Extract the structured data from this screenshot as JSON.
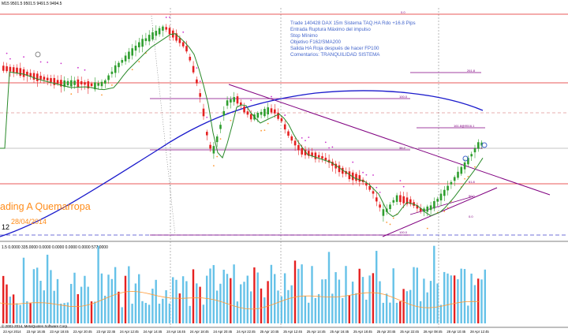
{
  "window": {
    "symbol_line": "M15  9501.5 9501.5 9491.5 9494.5",
    "timeframe_tag": "12",
    "volume_info": "1.5 0.0000 335.0000 0.0000 0.0000 0.0000 0.0000 577.0000",
    "copyright": "© 2001-2014, MetaQuotes Software Corp."
  },
  "annotations": [
    "Trade 140428 DAX 15m Sistema TAQ.HA Rdo +16.8 Pips",
    "Entrada Ruptura Máximo del impulso",
    "Stop Mínimo",
    "Objetivo F162/SMA200",
    "Salida HA Roja después de hacer FP100",
    "Comentarios: TRANQUILIDAD SISTEMA"
  ],
  "watermark": {
    "name": "ading A Quemarropa",
    "date": "28/04/2014"
  },
  "fib_labels": [
    "0.0",
    "261.8",
    "161.8",
    "100.0",
    "38.2",
    "61.8",
    "50.0",
    "0.0",
    "100.0",
    "161.8@9516.1"
  ],
  "time_axis": [
    "23 Apr 2014",
    "23 Apr 16:45",
    "23 Apr 18:45",
    "23 Apr 20:45",
    "23 Apr 22:45",
    "24 Apr 12:45",
    "24 Apr 14:45",
    "24 Apr 16:45",
    "24 Apr 18:45",
    "24 Apr 20:45",
    "24 Apr 22:45",
    "25 Apr 10:45",
    "25 Apr 12:45",
    "25 Apr 14:45",
    "25 Apr 16:45",
    "25 Apr 18:45",
    "25 Apr 20:45",
    "25 Apr 22:45",
    "28 Apr 08:45",
    "28 Apr 10:45",
    "28 Apr 12:45"
  ],
  "colors": {
    "bull": "#2e9e2e",
    "bear": "#e52020",
    "sma200": "#1a1acc",
    "sma": "#2a8a2a",
    "psar_up": "#ff9933",
    "psar_dn": "#cc33cc",
    "fib": "#800080",
    "level": "#e02020",
    "vol_up": "#66c2e8",
    "vol_dn": "#e52020",
    "vol_line": "#ff9933",
    "annot": "#4466cc",
    "watermark": "#ff8c1a"
  }
}
